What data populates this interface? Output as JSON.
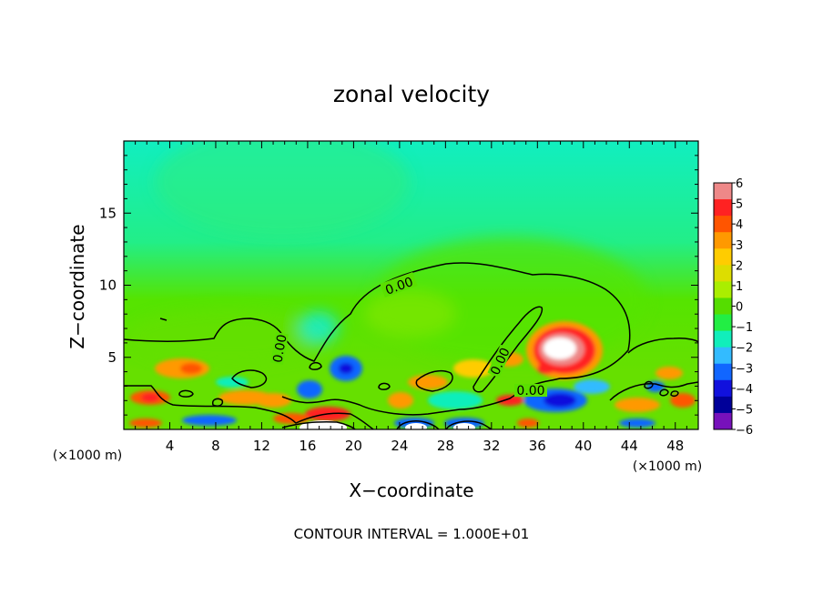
{
  "chart_data": {
    "type": "heatmap",
    "title": "zonal velocity",
    "xlabel": "X−coordinate",
    "ylabel": "Z−coordinate",
    "x_unit": "(×1000 m)",
    "y_unit": "(×1000 m)",
    "xlim": [
      0,
      50
    ],
    "ylim": [
      0,
      20
    ],
    "x_ticks": [
      4,
      8,
      12,
      16,
      20,
      24,
      28,
      32,
      36,
      40,
      44,
      48
    ],
    "y_ticks": [
      5,
      10,
      15
    ],
    "colorbar": {
      "min": -6,
      "max": 6,
      "labels": [
        "6",
        "5",
        "4",
        "3",
        "2",
        "1",
        "0",
        "−1",
        "−2",
        "−3",
        "−4",
        "−5",
        "−6"
      ],
      "colors": [
        "#ee8888",
        "#ff2222",
        "#ff5500",
        "#ff9900",
        "#ffcc00",
        "#dddd00",
        "#aaee00",
        "#55dd00",
        "#22ee44",
        "#11eebb",
        "#33bbff",
        "#1166ff",
        "#1111dd",
        "#000099",
        "#7711bb"
      ]
    },
    "contour_label": "0.00",
    "contour_interval_text": "CONTOUR INTERVAL = 1.000E+01",
    "field_features": [
      {
        "type": "positive_max",
        "x": 37.5,
        "z": 5.5,
        "value": 6
      },
      {
        "type": "positive_max",
        "x": 18,
        "z": 0.3,
        "value": 6
      },
      {
        "type": "positive_max",
        "x": 30,
        "z": 0.3,
        "value": 6
      },
      {
        "type": "positive",
        "x": 5,
        "z": 4,
        "value": 3
      },
      {
        "type": "positive",
        "x": 2,
        "z": 2.3,
        "value": 4
      },
      {
        "type": "positive",
        "x": 34,
        "z": 3.5,
        "value": 3
      },
      {
        "type": "negative",
        "x": 19,
        "z": 4,
        "value": -3
      },
      {
        "type": "negative",
        "x": 38,
        "z": 2,
        "value": -4
      },
      {
        "type": "negative",
        "x": 15,
        "z": 3,
        "value": -3
      }
    ]
  }
}
